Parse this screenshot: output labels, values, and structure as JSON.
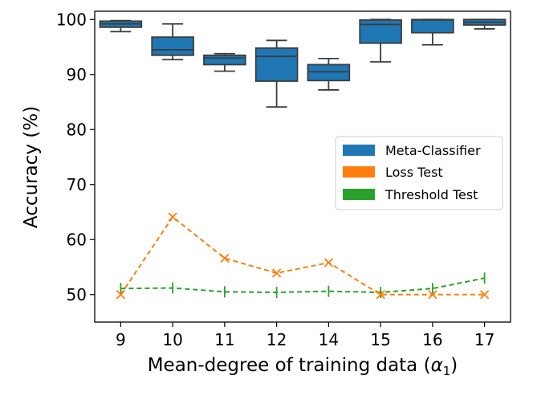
{
  "chart_data": {
    "type": "box",
    "title": "",
    "xlabel": "Mean-degree of training data (",
    "xlabel_symbol": "α",
    "xlabel_subscript": "1",
    "xlabel_close": ")",
    "ylabel": "Accuracy (%)",
    "ylim": [
      45,
      101.5
    ],
    "yticks": [
      50,
      60,
      70,
      80,
      90,
      100
    ],
    "categories": [
      "9",
      "10",
      "11",
      "12",
      "14",
      "15",
      "16",
      "17"
    ],
    "legend": {
      "position": "center-right",
      "entries": [
        "Meta-Classifier",
        "Loss Test",
        "Threshold Test"
      ]
    },
    "colors": {
      "meta": "#1f77b4",
      "loss": "#ff7f0e",
      "threshold": "#2ca02c",
      "median": "#3d3d3d"
    },
    "series": [
      {
        "name": "Meta-Classifier",
        "kind": "box",
        "boxes": [
          {
            "min": 97.8,
            "q1": 98.6,
            "median": 99.2,
            "q3": 99.7,
            "max": 99.8
          },
          {
            "min": 92.7,
            "q1": 93.5,
            "median": 94.5,
            "q3": 96.8,
            "max": 99.2
          },
          {
            "min": 90.6,
            "q1": 91.8,
            "median": 93.0,
            "q3": 93.5,
            "max": 93.8
          },
          {
            "min": 84.1,
            "q1": 88.8,
            "median": 93.3,
            "q3": 94.8,
            "max": 96.2
          },
          {
            "min": 87.2,
            "q1": 88.9,
            "median": 90.5,
            "q3": 91.8,
            "max": 92.9
          },
          {
            "min": 92.3,
            "q1": 95.7,
            "median": 99.1,
            "q3": 99.9,
            "max": 100.0
          },
          {
            "min": 95.4,
            "q1": 97.6,
            "median": 99.9,
            "q3": 100.0,
            "max": 100.0
          },
          {
            "min": 98.3,
            "q1": 99.0,
            "median": 99.5,
            "q3": 100.0,
            "max": 100.0
          }
        ]
      },
      {
        "name": "Loss Test",
        "kind": "line",
        "marker": "x",
        "values": [
          50.0,
          64.1,
          56.6,
          53.9,
          55.8,
          50.0,
          50.0,
          50.0
        ]
      },
      {
        "name": "Threshold Test",
        "kind": "line",
        "marker": "tick",
        "values": [
          51.1,
          51.2,
          50.5,
          50.4,
          50.6,
          50.4,
          51.1,
          53.0
        ]
      }
    ]
  }
}
